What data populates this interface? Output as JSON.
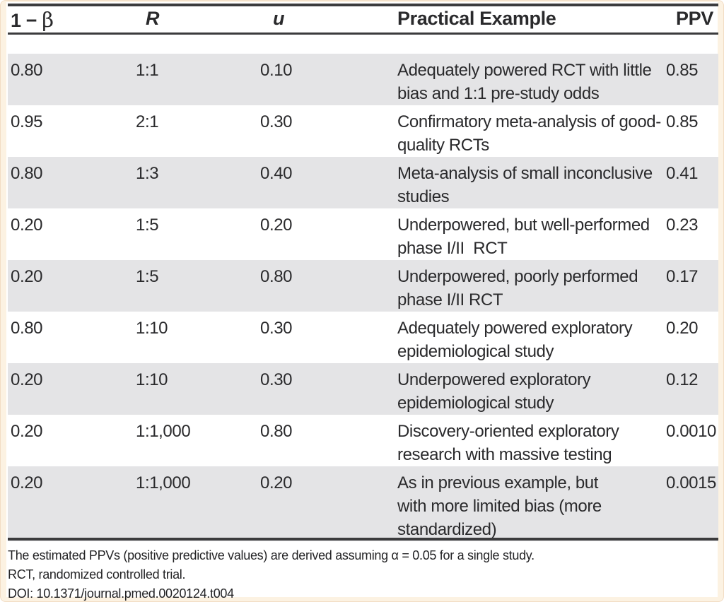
{
  "table": {
    "headers": {
      "power_prefix": "1 − ",
      "power_beta": "β",
      "r": "R",
      "u": "u",
      "example": "Practical Example",
      "ppv": "PPV"
    },
    "rows": [
      {
        "power": "0.80",
        "r": "1:1",
        "u": "0.10",
        "example": "Adequately powered RCT with little\nbias and 1:1 pre-study odds",
        "ppv": "0.85"
      },
      {
        "power": "0.95",
        "r": "2:1",
        "u": "0.30",
        "example": "Confirmatory meta-analysis of good-\nquality RCTs",
        "ppv": "0.85"
      },
      {
        "power": "0.80",
        "r": "1:3",
        "u": "0.40",
        "example": "Meta-analysis of small inconclusive\nstudies",
        "ppv": "0.41"
      },
      {
        "power": "0.20",
        "r": "1:5",
        "u": "0.20",
        "example": "Underpowered, but well-performed\nphase I/II  RCT",
        "ppv": "0.23"
      },
      {
        "power": "0.20",
        "r": "1:5",
        "u": "0.80",
        "example": "Underpowered, poorly performed\nphase I/II RCT",
        "ppv": "0.17"
      },
      {
        "power": "0.80",
        "r": "1:10",
        "u": "0.30",
        "example": "Adequately powered exploratory\nepidemiological study",
        "ppv": "0.20"
      },
      {
        "power": "0.20",
        "r": "1:10",
        "u": "0.30",
        "example": "Underpowered exploratory\nepidemiological study",
        "ppv": "0.12"
      },
      {
        "power": "0.20",
        "r": "1:1,000",
        "u": "0.80",
        "example": "Discovery-oriented exploratory\nresearch with massive testing",
        "ppv": "0.0010"
      },
      {
        "power": "0.20",
        "r": "1:1,000",
        "u": "0.20",
        "example": "As in previous example, but\nwith more limited bias (more\nstandardized)",
        "ppv": "0.0015"
      }
    ]
  },
  "footnotes": {
    "line1": "The estimated PPVs (positive predictive values) are derived assuming α = 0.05 for a single study.",
    "line2": "RCT, randomized controlled trial.",
    "line3": "DOI: 10.1371/journal.pmed.0020124.t004"
  },
  "colors": {
    "stripe_gray": "#e4e4e6",
    "frame_cream": "#fcf2e2",
    "rule_dark": "#3b3b3d",
    "text": "#2a2a2c"
  }
}
